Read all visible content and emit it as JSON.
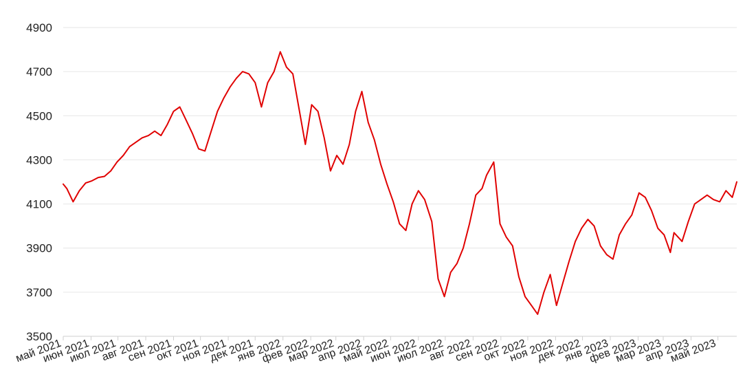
{
  "chart_data": {
    "type": "line",
    "title": "",
    "xlabel": "",
    "ylabel": "",
    "ylim": [
      3500,
      4900
    ],
    "y_ticks": [
      3500,
      3700,
      3900,
      4100,
      4300,
      4500,
      4700,
      4900
    ],
    "x_tick_labels": [
      "май 2021",
      "июн 2021",
      "июл 2021",
      "авг 2021",
      "сен 2021",
      "окт 2021",
      "ноя 2021",
      "дек 2021",
      "янв 2022",
      "фев 2022",
      "мар 2022",
      "апр 2022",
      "май 2022",
      "июн 2022",
      "июл 2022",
      "авг 2022",
      "сен 2022",
      "окт 2022",
      "ноя 2022",
      "дек 2022",
      "янв 2023",
      "фев 2023",
      "мар 2023",
      "апр 2023",
      "май 2023"
    ],
    "x_range": [
      "2021-05-01",
      "2023-05-22"
    ],
    "grid": true,
    "color": "#e00000",
    "series": [
      {
        "x": [
          "2021-05-01",
          "2021-05-05",
          "2021-05-12",
          "2021-05-19",
          "2021-05-26",
          "2021-06-02",
          "2021-06-09",
          "2021-06-16",
          "2021-06-23",
          "2021-06-30",
          "2021-07-07",
          "2021-07-14",
          "2021-07-21",
          "2021-07-28",
          "2021-08-04",
          "2021-08-11",
          "2021-08-18",
          "2021-08-25",
          "2021-09-01",
          "2021-09-08",
          "2021-09-15",
          "2021-09-22",
          "2021-09-29",
          "2021-10-06",
          "2021-10-13",
          "2021-10-20",
          "2021-10-27",
          "2021-11-03",
          "2021-11-10",
          "2021-11-17",
          "2021-11-24",
          "2021-12-01",
          "2021-12-08",
          "2021-12-15",
          "2021-12-22",
          "2021-12-29",
          "2022-01-05",
          "2022-01-12",
          "2022-01-19",
          "2022-01-26",
          "2022-02-02",
          "2022-02-09",
          "2022-02-16",
          "2022-02-23",
          "2022-03-02",
          "2022-03-09",
          "2022-03-16",
          "2022-03-23",
          "2022-03-30",
          "2022-04-06",
          "2022-04-13",
          "2022-04-20",
          "2022-04-27",
          "2022-05-04",
          "2022-05-11",
          "2022-05-18",
          "2022-05-25",
          "2022-06-01",
          "2022-06-08",
          "2022-06-16",
          "2022-06-23",
          "2022-06-30",
          "2022-07-07",
          "2022-07-14",
          "2022-07-21",
          "2022-07-28",
          "2022-08-04",
          "2022-08-11",
          "2022-08-16",
          "2022-08-24",
          "2022-08-31",
          "2022-09-07",
          "2022-09-14",
          "2022-09-21",
          "2022-09-28",
          "2022-10-05",
          "2022-10-12",
          "2022-10-19",
          "2022-10-26",
          "2022-11-02",
          "2022-11-09",
          "2022-11-16",
          "2022-11-23",
          "2022-11-30",
          "2022-12-07",
          "2022-12-14",
          "2022-12-21",
          "2022-12-28",
          "2023-01-04",
          "2023-01-11",
          "2023-01-18",
          "2023-01-25",
          "2023-02-02",
          "2023-02-09",
          "2023-02-16",
          "2023-02-23",
          "2023-03-02",
          "2023-03-09",
          "2023-03-13",
          "2023-03-22",
          "2023-03-29",
          "2023-04-05",
          "2023-04-12",
          "2023-04-19",
          "2023-04-26",
          "2023-05-03",
          "2023-05-10",
          "2023-05-17",
          "2023-05-22"
        ],
        "values": [
          4190,
          4170,
          4110,
          4160,
          4195,
          4205,
          4220,
          4225,
          4250,
          4290,
          4320,
          4360,
          4380,
          4400,
          4410,
          4430,
          4410,
          4460,
          4520,
          4540,
          4480,
          4420,
          4350,
          4340,
          4430,
          4520,
          4580,
          4630,
          4670,
          4700,
          4690,
          4650,
          4540,
          4650,
          4700,
          4790,
          4720,
          4690,
          4530,
          4370,
          4550,
          4520,
          4400,
          4250,
          4320,
          4280,
          4370,
          4520,
          4610,
          4470,
          4390,
          4280,
          4190,
          4110,
          4010,
          3980,
          4100,
          4160,
          4120,
          4020,
          3760,
          3680,
          3790,
          3830,
          3900,
          4010,
          4140,
          4170,
          4230,
          4290,
          4010,
          3950,
          3910,
          3770,
          3680,
          3640,
          3600,
          3700,
          3780,
          3640,
          3740,
          3840,
          3930,
          3990,
          4030,
          4000,
          3910,
          3870,
          3850,
          3960,
          4010,
          4050,
          4150,
          4130,
          4070,
          3990,
          3960,
          3880,
          3970,
          3930,
          4020,
          4100,
          4120,
          4140,
          4120,
          4110,
          4160,
          4130,
          4200
        ]
      }
    ]
  }
}
